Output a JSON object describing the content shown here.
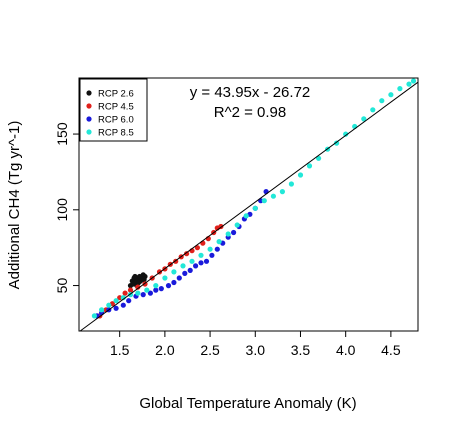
{
  "chart_data": {
    "type": "scatter",
    "title": "",
    "xlabel": "Global Temperature Anomaly (K)",
    "ylabel": "Additional CH4 (Tg yr^-1)",
    "xlim": [
      1.05,
      4.8
    ],
    "ylim": [
      20,
      187
    ],
    "xticks": [
      1.5,
      2.0,
      2.5,
      3.0,
      3.5,
      4.0,
      4.5
    ],
    "xtick_labels": [
      "1.5",
      "2.0",
      "2.5",
      "3.0",
      "3.5",
      "4.0",
      "4.5"
    ],
    "yticks": [
      50,
      100,
      150
    ],
    "ytick_labels": [
      "50",
      "100",
      "150"
    ],
    "grid": false,
    "legend_position": "top-left",
    "annotations": [
      "y = 43.95x - 26.72",
      "R^2 = 0.98"
    ],
    "fit_line": {
      "slope": 43.95,
      "intercept": -26.72
    },
    "series": [
      {
        "name": "RCP 2.6",
        "color": "#111111",
        "points": [
          [
            1.62,
            50
          ],
          [
            1.64,
            53
          ],
          [
            1.66,
            55
          ],
          [
            1.68,
            52
          ],
          [
            1.7,
            54
          ],
          [
            1.72,
            56
          ],
          [
            1.74,
            55
          ],
          [
            1.76,
            57
          ],
          [
            1.78,
            56
          ],
          [
            1.65,
            51
          ],
          [
            1.69,
            50
          ],
          [
            1.73,
            53
          ],
          [
            1.77,
            54
          ],
          [
            1.67,
            56
          ],
          [
            1.71,
            52
          ]
        ]
      },
      {
        "name": "RCP 4.5",
        "color": "#e0201b",
        "points": [
          [
            1.28,
            30
          ],
          [
            1.35,
            34
          ],
          [
            1.42,
            38
          ],
          [
            1.5,
            42
          ],
          [
            1.56,
            45
          ],
          [
            1.62,
            47
          ],
          [
            1.7,
            49
          ],
          [
            1.78,
            51
          ],
          [
            1.86,
            55
          ],
          [
            1.94,
            59
          ],
          [
            2.0,
            61
          ],
          [
            2.06,
            64
          ],
          [
            2.12,
            66
          ],
          [
            2.18,
            69
          ],
          [
            2.24,
            71
          ],
          [
            2.3,
            73
          ],
          [
            2.36,
            75
          ],
          [
            2.42,
            78
          ],
          [
            2.48,
            81
          ],
          [
            2.54,
            85
          ],
          [
            2.58,
            88
          ],
          [
            2.62,
            89
          ]
        ]
      },
      {
        "name": "RCP 6.0",
        "color": "#1a1adb",
        "points": [
          [
            1.25,
            30
          ],
          [
            1.3,
            32
          ],
          [
            1.38,
            34
          ],
          [
            1.46,
            35
          ],
          [
            1.54,
            37
          ],
          [
            1.6,
            40
          ],
          [
            1.68,
            43
          ],
          [
            1.76,
            44
          ],
          [
            1.84,
            45
          ],
          [
            1.9,
            47
          ],
          [
            1.96,
            48
          ],
          [
            2.04,
            50
          ],
          [
            2.1,
            52
          ],
          [
            2.16,
            55
          ],
          [
            2.22,
            58
          ],
          [
            2.28,
            60
          ],
          [
            2.34,
            63
          ],
          [
            2.4,
            65
          ],
          [
            2.46,
            66
          ],
          [
            2.52,
            70
          ],
          [
            2.58,
            74
          ],
          [
            2.64,
            78
          ],
          [
            2.7,
            82
          ],
          [
            2.76,
            85
          ],
          [
            2.82,
            89
          ],
          [
            2.88,
            94
          ],
          [
            2.94,
            97
          ],
          [
            3.0,
            101
          ],
          [
            3.06,
            106
          ],
          [
            3.12,
            112
          ]
        ]
      },
      {
        "name": "RCP 8.5",
        "color": "#22e8d8",
        "points": [
          [
            1.22,
            30
          ],
          [
            1.3,
            34
          ],
          [
            1.38,
            37
          ],
          [
            1.46,
            40
          ],
          [
            1.54,
            42
          ],
          [
            1.62,
            44
          ],
          [
            1.7,
            45
          ],
          [
            1.8,
            47
          ],
          [
            1.9,
            50
          ],
          [
            2.0,
            55
          ],
          [
            2.1,
            59
          ],
          [
            2.2,
            63
          ],
          [
            2.3,
            66
          ],
          [
            2.4,
            70
          ],
          [
            2.5,
            74
          ],
          [
            2.6,
            79
          ],
          [
            2.7,
            84
          ],
          [
            2.8,
            90
          ],
          [
            2.9,
            96
          ],
          [
            3.0,
            101
          ],
          [
            3.1,
            106
          ],
          [
            3.2,
            109
          ],
          [
            3.3,
            112
          ],
          [
            3.4,
            117
          ],
          [
            3.5,
            123
          ],
          [
            3.6,
            129
          ],
          [
            3.7,
            134
          ],
          [
            3.8,
            140
          ],
          [
            3.9,
            144
          ],
          [
            4.0,
            150
          ],
          [
            4.1,
            155
          ],
          [
            4.2,
            160
          ],
          [
            4.3,
            166
          ],
          [
            4.4,
            172
          ],
          [
            4.5,
            176
          ],
          [
            4.6,
            180
          ],
          [
            4.7,
            183
          ],
          [
            4.75,
            185
          ]
        ]
      }
    ]
  }
}
